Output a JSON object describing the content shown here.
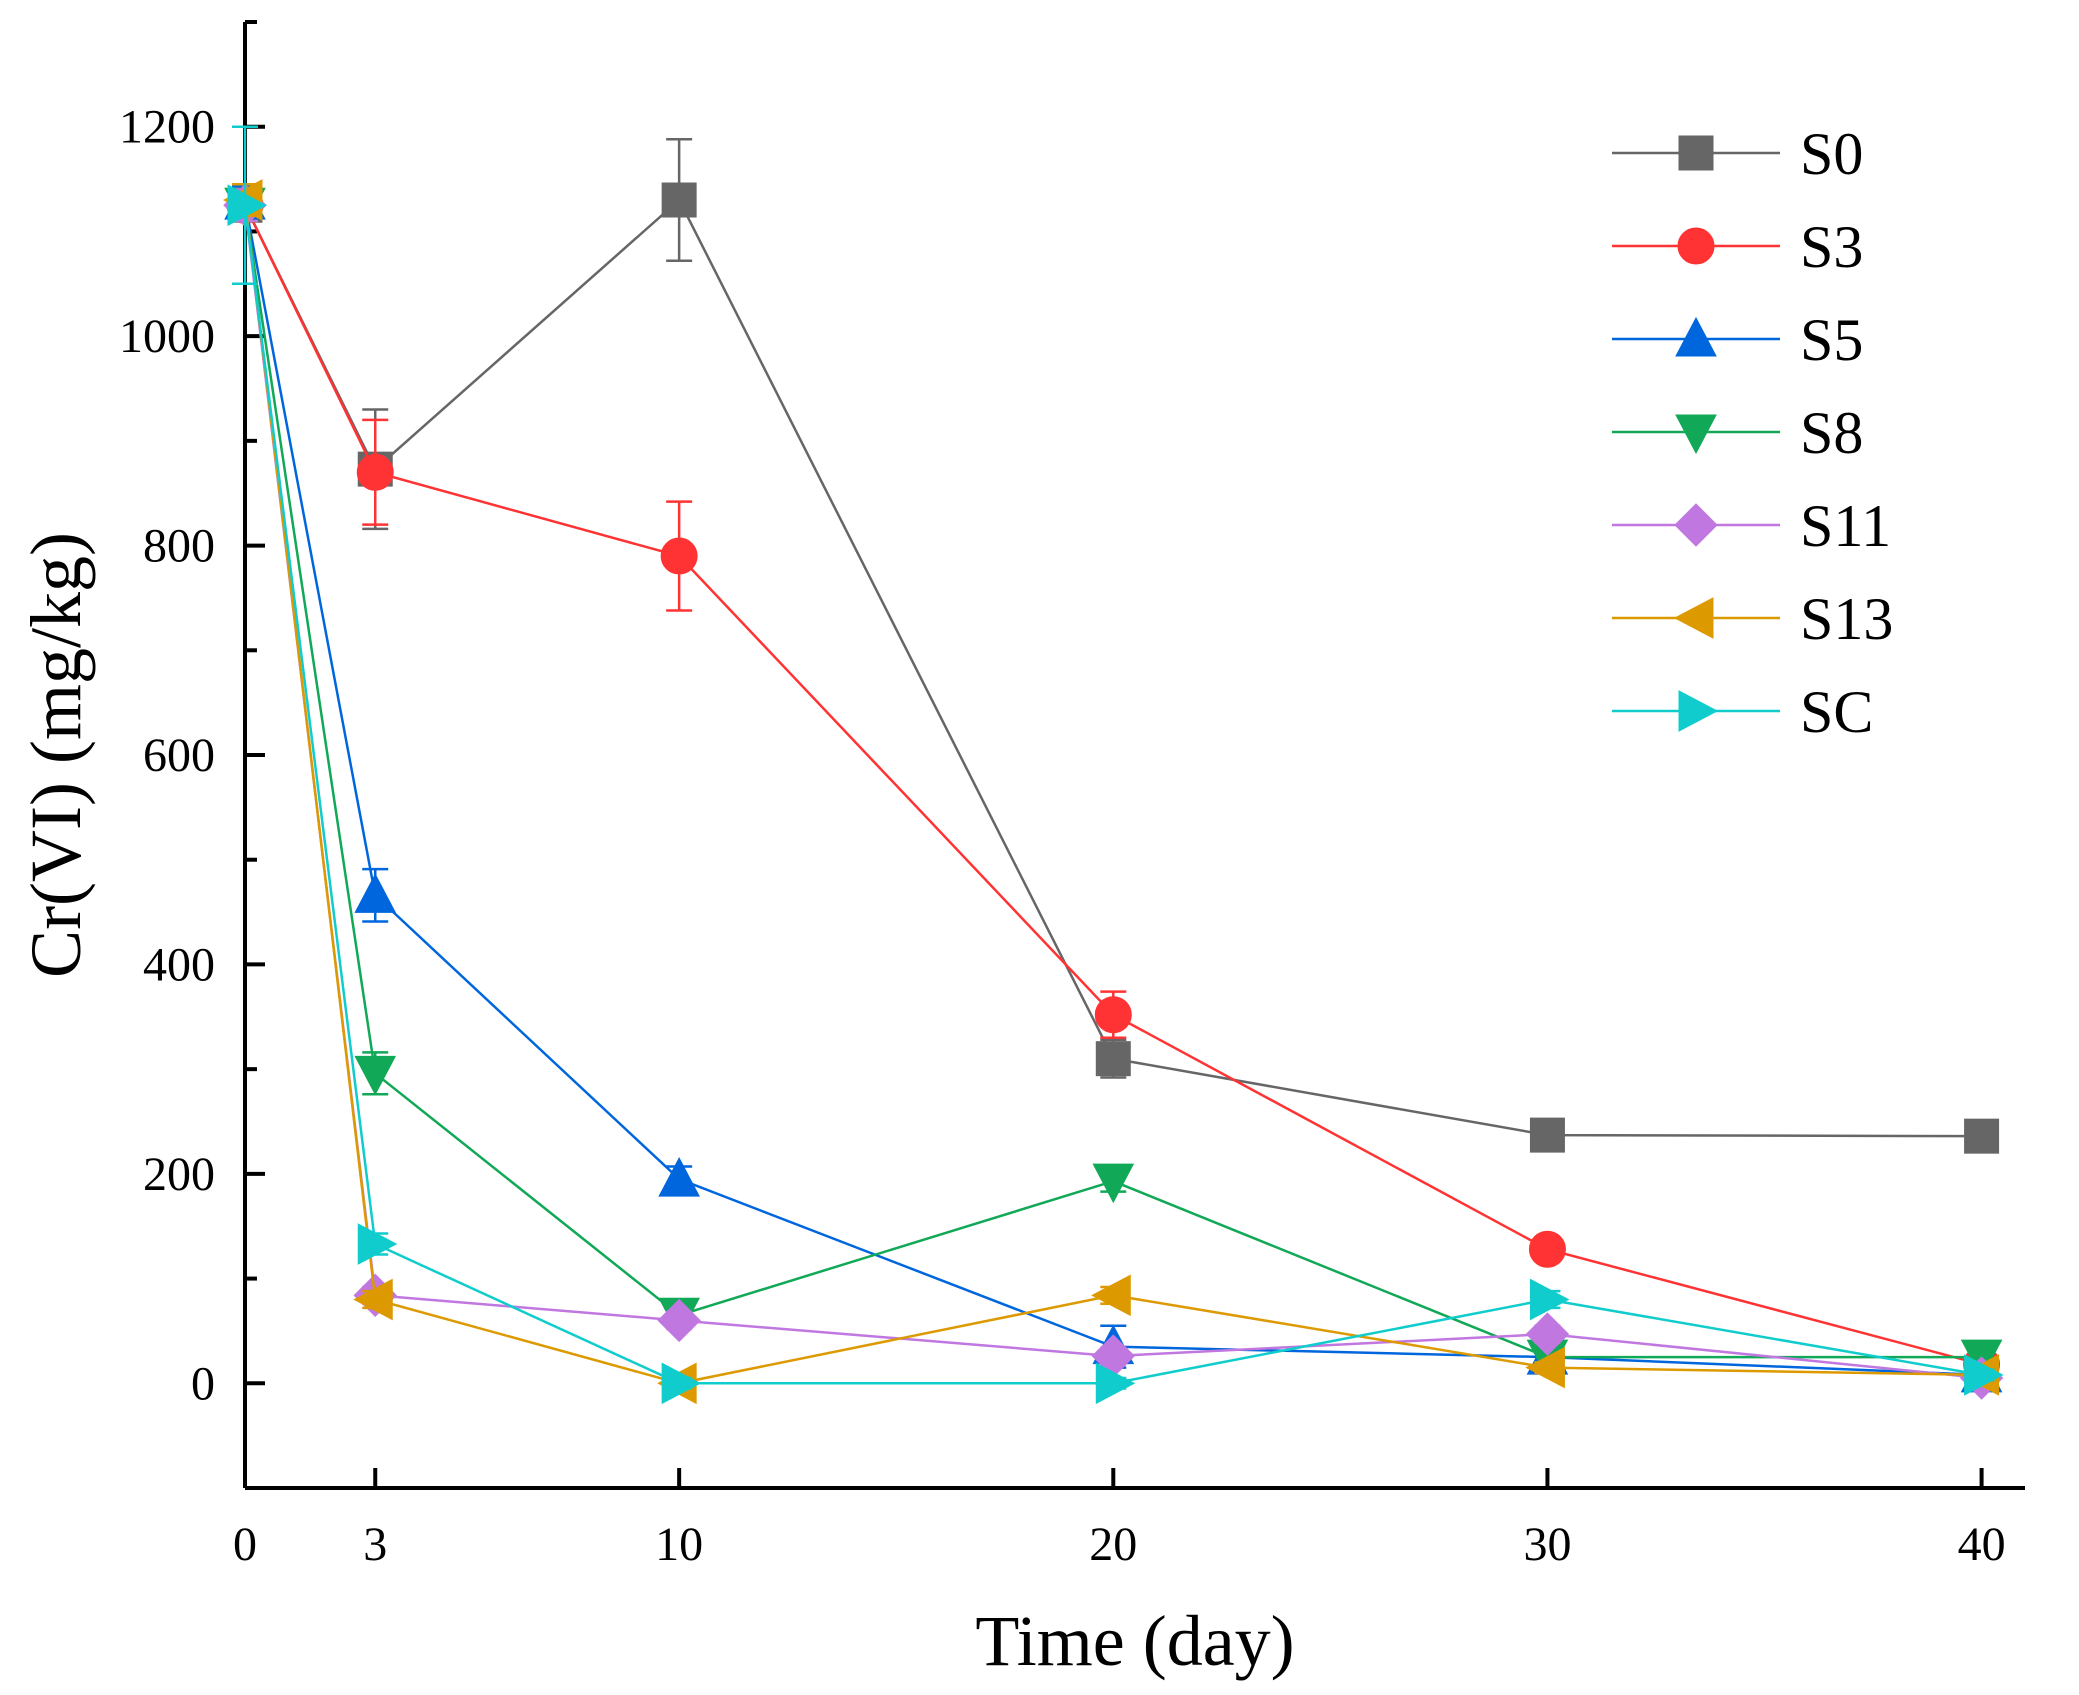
{
  "chart_data": {
    "type": "line",
    "title": "",
    "xlabel": "Time (day)",
    "ylabel": "Cr(VI) (mg/kg)",
    "xlim": [
      0,
      41
    ],
    "ylim": [
      -100,
      1300
    ],
    "x": [
      0,
      3,
      10,
      20,
      30,
      40
    ],
    "xticks": [
      0,
      3,
      10,
      20,
      30,
      40
    ],
    "xtick_labels": [
      "0",
      "3",
      "10",
      "20",
      "30",
      "40"
    ],
    "yticks": [
      0,
      200,
      400,
      600,
      800,
      1000,
      1200
    ],
    "ytick_labels": [
      "0",
      "200",
      "400",
      "600",
      "800",
      "1000",
      "1200"
    ],
    "yminor": [
      -100,
      100,
      300,
      500,
      700,
      900,
      1100,
      1300
    ],
    "grid": false,
    "legend_position": "top-right",
    "series": [
      {
        "name": "S0",
        "color": "#666666",
        "marker": "square",
        "values": [
          1125,
          873,
          1130,
          310,
          237,
          236
        ],
        "errors": [
          15,
          57,
          58,
          18,
          5,
          5
        ]
      },
      {
        "name": "S3",
        "color": "#FF3333",
        "marker": "circle",
        "values": [
          1125,
          870,
          790,
          352,
          128,
          18
        ],
        "errors": [
          15,
          50,
          52,
          22,
          5,
          5
        ]
      },
      {
        "name": "S5",
        "color": "#0066DD",
        "marker": "triangle-up",
        "values": [
          1128,
          466,
          195,
          35,
          25,
          8
        ],
        "errors": [
          15,
          25,
          12,
          20,
          5,
          5
        ]
      },
      {
        "name": "S8",
        "color": "#11A857",
        "marker": "triangle-down",
        "values": [
          1125,
          296,
          65,
          193,
          25,
          25
        ],
        "errors": [
          15,
          20,
          8,
          10,
          5,
          5
        ]
      },
      {
        "name": "S11",
        "color": "#C077E0",
        "marker": "diamond",
        "values": [
          1125,
          84,
          60,
          26,
          47,
          5
        ],
        "errors": [
          15,
          8,
          8,
          8,
          8,
          5
        ]
      },
      {
        "name": "S13",
        "color": "#DD9900",
        "marker": "triangle-left",
        "values": [
          1130,
          80,
          0,
          84,
          15,
          8
        ],
        "errors": [
          15,
          8,
          5,
          8,
          5,
          5
        ]
      },
      {
        "name": "SC",
        "color": "#11CCCC",
        "marker": "triangle-right",
        "values": [
          1125,
          133,
          0,
          0,
          80,
          8
        ],
        "errors": [
          75,
          10,
          5,
          5,
          8,
          5
        ]
      }
    ]
  }
}
